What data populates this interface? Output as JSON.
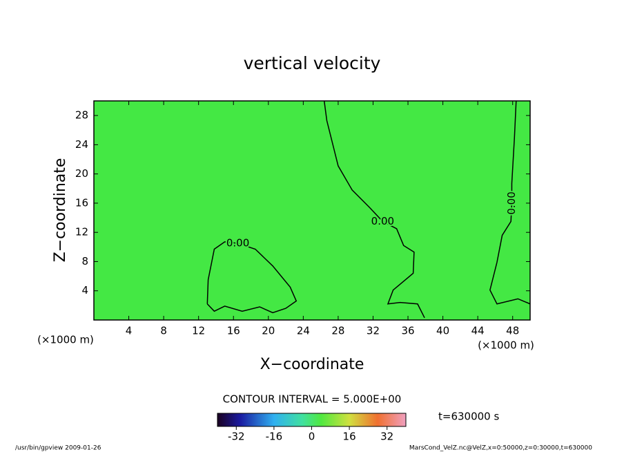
{
  "chart_data": {
    "type": "contour",
    "title": "vertical velocity",
    "x_label": "X−coordinate",
    "y_label": "Z−coordinate",
    "x_unit": "(×1000 m)",
    "y_unit": "(×1000 m)",
    "xlim": [
      0,
      50
    ],
    "ylim": [
      0,
      30
    ],
    "xticks": [
      4,
      8,
      12,
      16,
      20,
      24,
      28,
      32,
      36,
      40,
      44,
      48
    ],
    "yticks": [
      4,
      8,
      12,
      16,
      20,
      24,
      28
    ],
    "fill_color": "#44e844",
    "line_color": "#000000",
    "contours": [
      {
        "label": "0.00",
        "x": [
          26.4,
          26.7,
          28.0,
          29.6,
          31.6,
          33.1,
          34.7,
          35.5,
          36.7,
          36.6,
          34.3,
          33.7,
          35.1,
          37.1,
          37.9
        ],
        "y": [
          30,
          27.3,
          21.1,
          17.8,
          15.4,
          13.5,
          12.5,
          10.2,
          9.3,
          6.4,
          4.1,
          2.2,
          2.4,
          2.2,
          0.3
        ]
      },
      {
        "label": "0.00",
        "x": [
          13.0,
          13.1,
          13.8,
          15.0,
          16.5,
          18.5,
          20.5,
          22.5,
          23.2,
          22.0,
          20.5,
          19.0,
          17.0,
          15.0,
          13.8,
          13.0
        ],
        "y": [
          2.2,
          5.5,
          9.7,
          10.7,
          10.5,
          9.7,
          7.4,
          4.5,
          2.6,
          1.6,
          1.0,
          1.8,
          1.2,
          1.9,
          1.2,
          2.2
        ]
      },
      {
        "label": "0.00",
        "x": [
          48.4,
          48.2,
          47.9,
          47.9,
          47.8,
          46.8,
          46.2,
          45.4,
          46.2,
          48.6,
          50
        ],
        "y": [
          30,
          24.9,
          18.7,
          16.0,
          13.5,
          11.6,
          7.9,
          4.1,
          2.2,
          2.9,
          2.2
        ]
      }
    ],
    "contour_interval": "CONTOUR INTERVAL = 5.000E+00",
    "time": "t=630000 s",
    "colorbar": {
      "lim": [
        -40,
        40
      ],
      "ticks": [
        -32,
        -16,
        0,
        16,
        32
      ]
    },
    "footer_left": "/usr/bin/gpview   2009-01-26",
    "footer_right": "MarsCond_VelZ.nc@VelZ,x=0:50000,z=0:30000,t=630000"
  }
}
